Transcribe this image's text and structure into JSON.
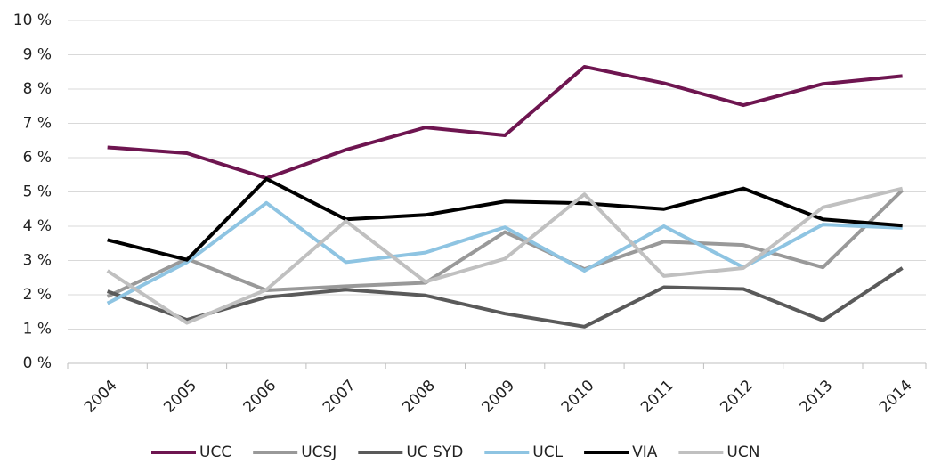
{
  "chart_data": {
    "type": "line",
    "categories": [
      "2004",
      "2005",
      "2006",
      "2007",
      "2008",
      "2009",
      "2010",
      "2011",
      "2012",
      "2013",
      "2014"
    ],
    "series": [
      {
        "name": "UCC",
        "color": "#6e1550",
        "values": [
          6.3,
          6.13,
          5.4,
          6.23,
          6.88,
          6.65,
          8.65,
          8.17,
          7.53,
          8.15,
          8.38
        ]
      },
      {
        "name": "UCSJ",
        "color": "#999999",
        "values": [
          1.95,
          3.05,
          2.13,
          2.25,
          2.35,
          3.83,
          2.75,
          3.55,
          3.45,
          2.8,
          5.05
        ]
      },
      {
        "name": "UC SYD",
        "color": "#5a5a5a",
        "values": [
          2.1,
          1.27,
          1.93,
          2.15,
          1.98,
          1.45,
          1.07,
          2.22,
          2.17,
          1.25,
          2.78
        ]
      },
      {
        "name": "UCL",
        "color": "#8ec4e2",
        "values": [
          1.75,
          2.95,
          4.68,
          2.95,
          3.23,
          3.97,
          2.7,
          4.0,
          2.8,
          4.05,
          3.95
        ]
      },
      {
        "name": "VIA",
        "color": "#000000",
        "values": [
          3.6,
          3.02,
          5.38,
          4.2,
          4.33,
          4.72,
          4.67,
          4.5,
          5.1,
          4.2,
          4.02
        ]
      },
      {
        "name": "UCN",
        "color": "#c0c0c0",
        "values": [
          2.7,
          1.18,
          2.15,
          4.15,
          2.38,
          3.05,
          4.93,
          2.55,
          2.78,
          4.55,
          5.1
        ]
      }
    ],
    "ylim": [
      0,
      10
    ],
    "yticks": [
      {
        "value": 0,
        "label": "0 %"
      },
      {
        "value": 1,
        "label": "1 %"
      },
      {
        "value": 2,
        "label": "2 %"
      },
      {
        "value": 3,
        "label": "3 %"
      },
      {
        "value": 4,
        "label": "4 %"
      },
      {
        "value": 5,
        "label": "5 %"
      },
      {
        "value": 6,
        "label": "6 %"
      },
      {
        "value": 7,
        "label": "7 %"
      },
      {
        "value": 8,
        "label": "8 %"
      },
      {
        "value": 9,
        "label": "9 %"
      },
      {
        "value": 10,
        "label": "10 %"
      }
    ],
    "grid": true,
    "legend": "bottom"
  }
}
